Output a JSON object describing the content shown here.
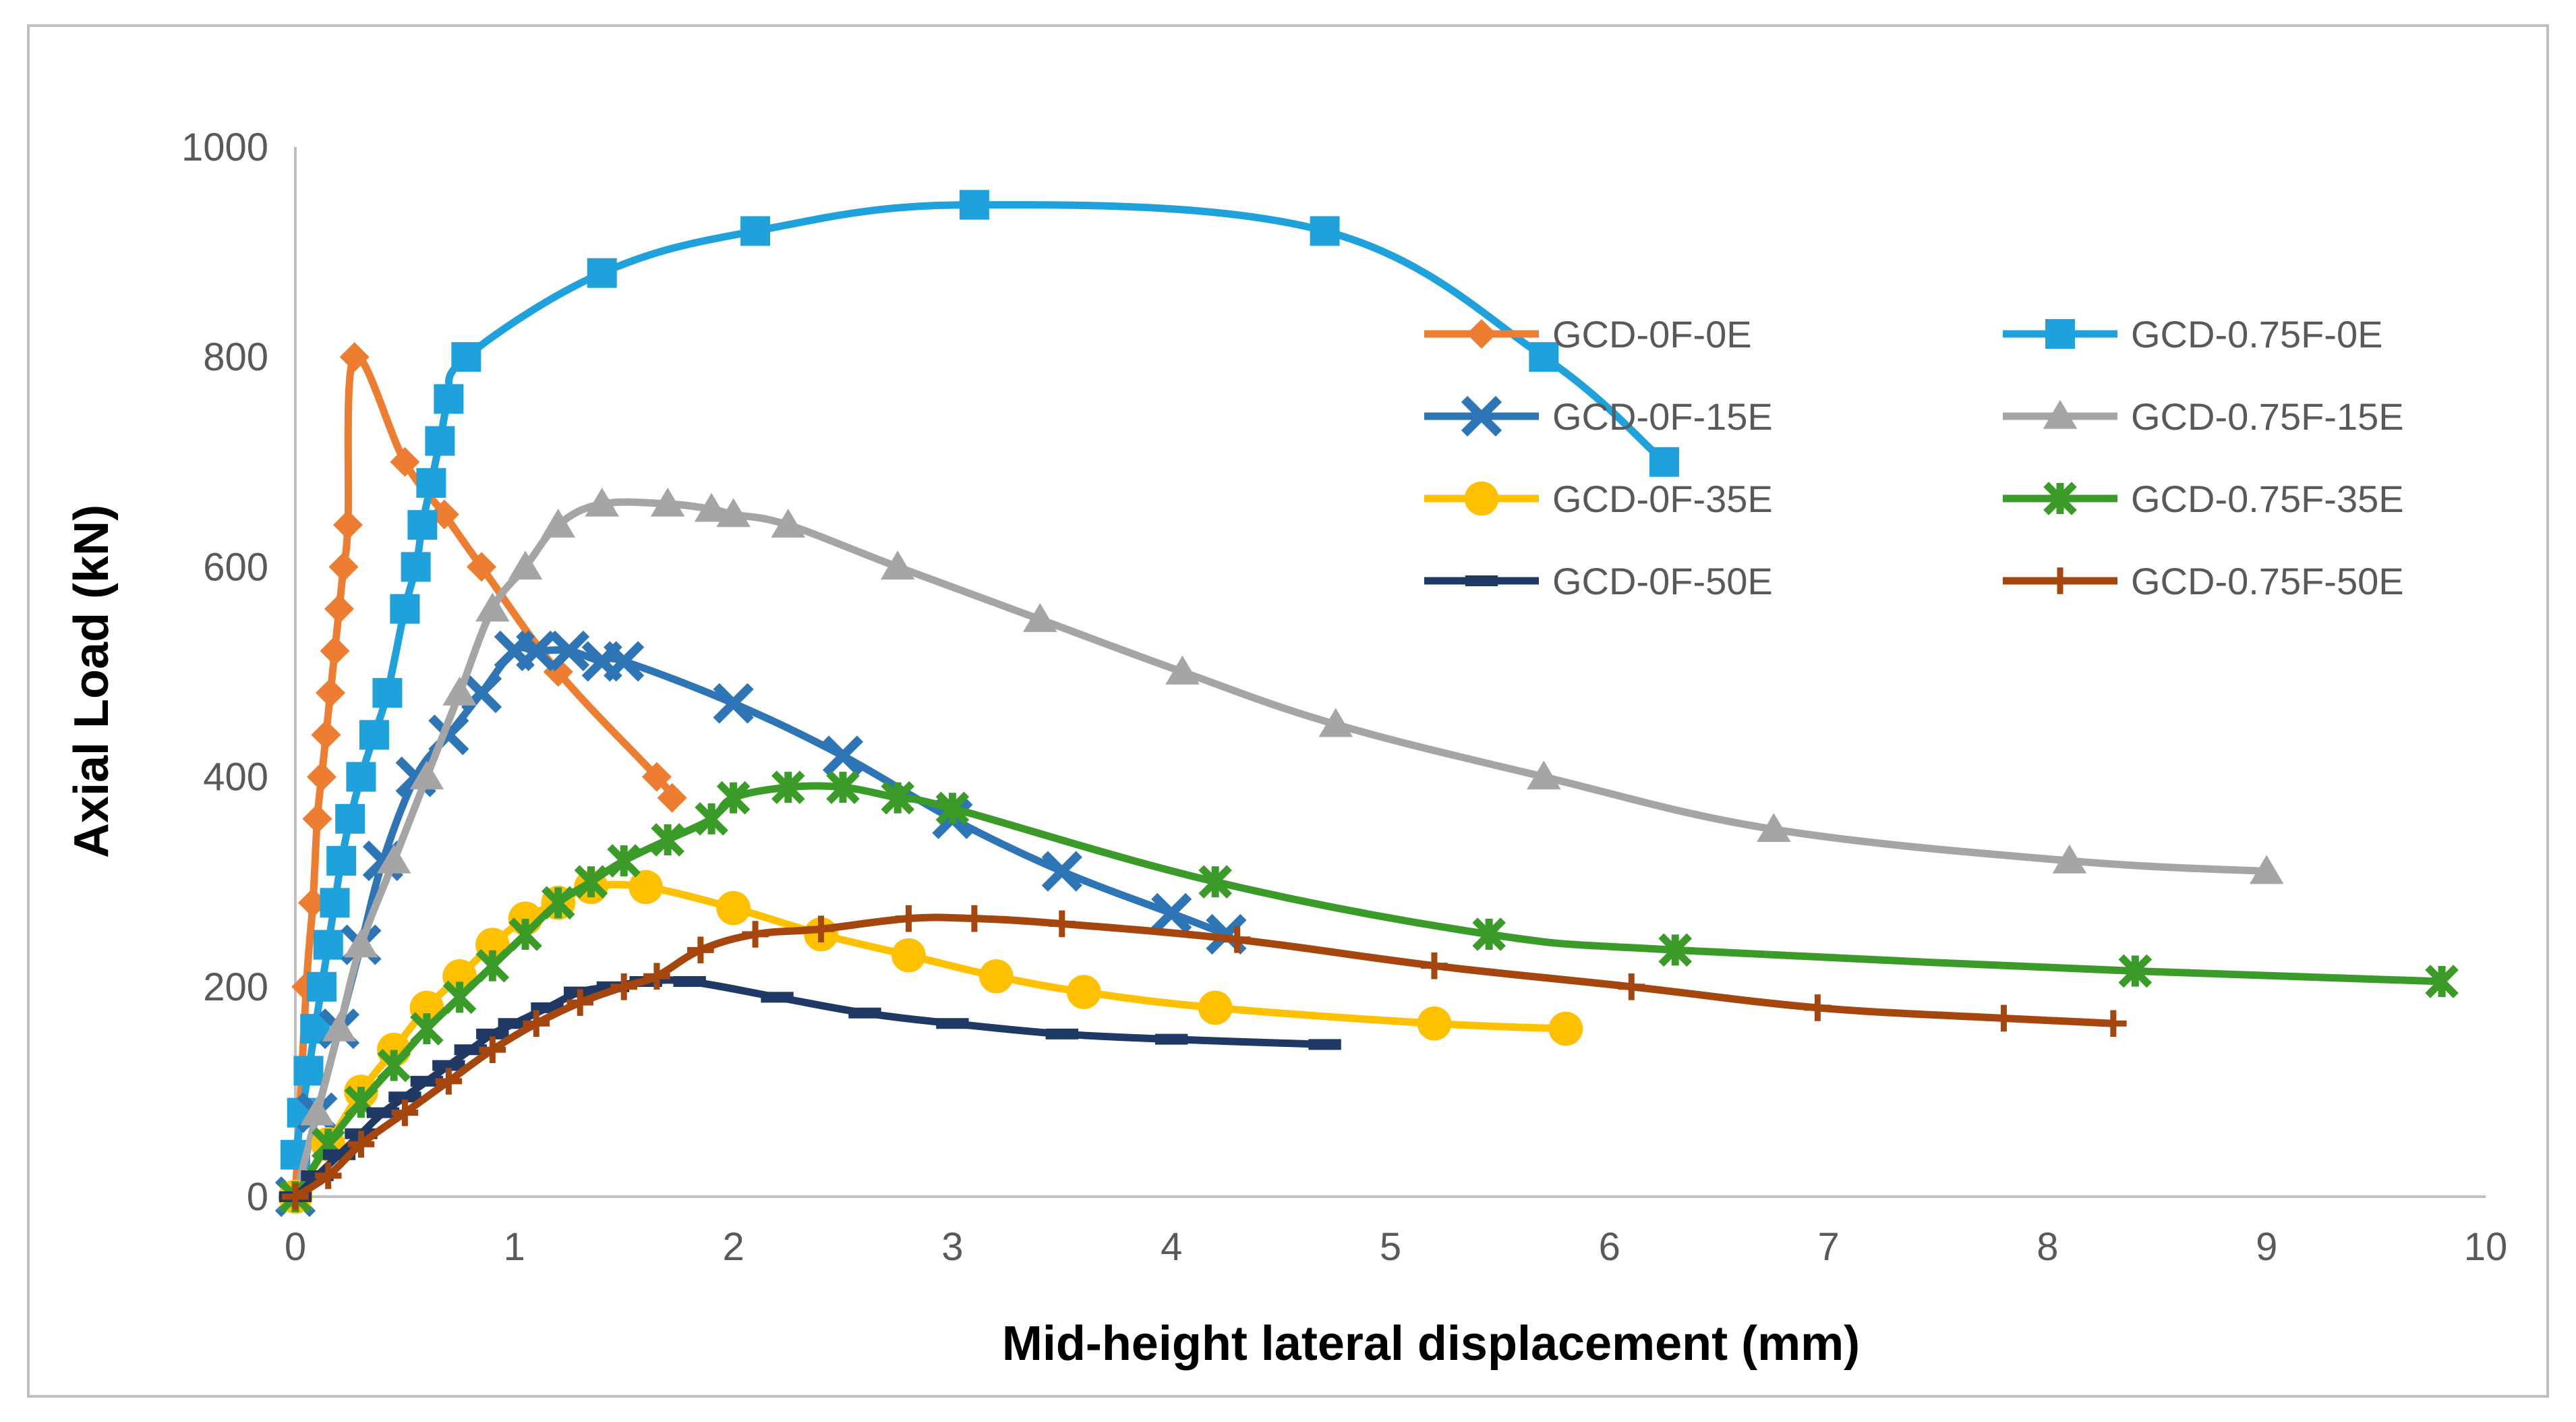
{
  "chart_data": {
    "type": "line",
    "xlabel": "Mid-height lateral displacement (mm)",
    "ylabel": "Axial Load (kN)",
    "xlim": [
      0,
      10
    ],
    "ylim": [
      0,
      1000
    ],
    "xticks": [
      0,
      1,
      2,
      3,
      4,
      5,
      6,
      7,
      8,
      9,
      10
    ],
    "yticks": [
      0,
      200,
      400,
      600,
      800,
      1000
    ],
    "grid": false,
    "legend_position": "right",
    "series": [
      {
        "name": "GCD-0F-0E",
        "color": "#ED7D31",
        "marker": "diamond",
        "x": [
          0,
          0.05,
          0.08,
          0.1,
          0.12,
          0.14,
          0.16,
          0.18,
          0.2,
          0.22,
          0.24,
          0.27,
          0.5,
          0.68,
          0.85,
          1.2,
          1.65,
          1.72
        ],
        "y": [
          0,
          200,
          280,
          360,
          400,
          440,
          480,
          520,
          560,
          600,
          640,
          800,
          700,
          650,
          600,
          500,
          400,
          380
        ]
      },
      {
        "name": "GCD-0.75F-0E",
        "color": "#1FA2DC",
        "marker": "square",
        "x": [
          0,
          0.03,
          0.06,
          0.09,
          0.12,
          0.15,
          0.18,
          0.21,
          0.25,
          0.3,
          0.36,
          0.42,
          0.5,
          0.55,
          0.58,
          0.62,
          0.66,
          0.7,
          0.78,
          1.4,
          2.1,
          3.1,
          4.7,
          5.7,
          6.25
        ],
        "y": [
          40,
          80,
          120,
          160,
          200,
          240,
          280,
          320,
          360,
          400,
          440,
          480,
          560,
          600,
          640,
          680,
          720,
          760,
          800,
          880,
          920,
          945,
          920,
          800,
          700
        ]
      },
      {
        "name": "GCD-0F-15E",
        "color": "#2E75B6",
        "marker": "x",
        "x": [
          0,
          0.1,
          0.2,
          0.3,
          0.4,
          0.55,
          0.7,
          0.85,
          1.0,
          1.1,
          1.25,
          1.4,
          1.5,
          2.0,
          2.5,
          3.0,
          3.5,
          4.0,
          4.25
        ],
        "y": [
          0,
          80,
          160,
          240,
          320,
          400,
          440,
          480,
          520,
          520,
          520,
          510,
          510,
          470,
          420,
          360,
          310,
          270,
          250
        ]
      },
      {
        "name": "GCD-0.75F-15E",
        "color": "#A5A5A5",
        "marker": "triangle",
        "x": [
          0,
          0.1,
          0.2,
          0.3,
          0.45,
          0.6,
          0.75,
          0.9,
          1.05,
          1.2,
          1.4,
          1.7,
          1.9,
          2.0,
          2.25,
          2.75,
          3.4,
          4.05,
          4.75,
          5.7,
          6.75,
          8.1,
          9.0
        ],
        "y": [
          0,
          80,
          160,
          240,
          320,
          400,
          480,
          560,
          600,
          640,
          660,
          660,
          655,
          650,
          640,
          600,
          550,
          500,
          450,
          400,
          350,
          320,
          310
        ]
      },
      {
        "name": "GCD-0F-35E",
        "color": "#FFC000",
        "marker": "circle",
        "x": [
          0,
          0.15,
          0.3,
          0.45,
          0.6,
          0.75,
          0.9,
          1.05,
          1.2,
          1.35,
          1.6,
          2.0,
          2.4,
          2.8,
          3.2,
          3.6,
          4.2,
          5.2,
          5.8
        ],
        "y": [
          0,
          50,
          100,
          140,
          180,
          210,
          240,
          265,
          280,
          295,
          295,
          275,
          250,
          230,
          210,
          195,
          180,
          165,
          160
        ]
      },
      {
        "name": "GCD-0.75F-35E",
        "color": "#3A9B28",
        "marker": "star",
        "x": [
          0,
          0.15,
          0.3,
          0.45,
          0.6,
          0.75,
          0.9,
          1.05,
          1.2,
          1.35,
          1.5,
          1.7,
          1.9,
          2.0,
          2.25,
          2.5,
          2.75,
          3.0,
          4.2,
          5.45,
          6.3,
          8.4,
          9.8
        ],
        "y": [
          0,
          50,
          90,
          125,
          160,
          190,
          220,
          250,
          280,
          300,
          320,
          340,
          360,
          380,
          390,
          390,
          380,
          370,
          300,
          250,
          235,
          215,
          205
        ]
      },
      {
        "name": "GCD-0F-50E",
        "color": "#1F3864",
        "marker": "dash",
        "x": [
          0,
          0.1,
          0.2,
          0.3,
          0.4,
          0.5,
          0.6,
          0.7,
          0.8,
          0.9,
          1.0,
          1.15,
          1.3,
          1.45,
          1.6,
          1.8,
          2.2,
          2.6,
          3.0,
          3.5,
          4.0,
          4.7
        ],
        "y": [
          0,
          20,
          40,
          60,
          80,
          95,
          110,
          125,
          140,
          155,
          165,
          180,
          195,
          200,
          205,
          205,
          190,
          175,
          165,
          155,
          150,
          145
        ]
      },
      {
        "name": "GCD-0.75F-50E",
        "color": "#A5460E",
        "marker": "plus",
        "x": [
          0,
          0.15,
          0.3,
          0.5,
          0.7,
          0.9,
          1.1,
          1.3,
          1.5,
          1.65,
          1.85,
          2.1,
          2.4,
          2.8,
          3.1,
          3.5,
          4.3,
          5.2,
          6.1,
          6.95,
          7.8,
          8.3
        ],
        "y": [
          0,
          20,
          50,
          80,
          110,
          140,
          165,
          185,
          200,
          210,
          235,
          250,
          255,
          265,
          265,
          260,
          245,
          220,
          200,
          180,
          170,
          165
        ]
      }
    ]
  }
}
